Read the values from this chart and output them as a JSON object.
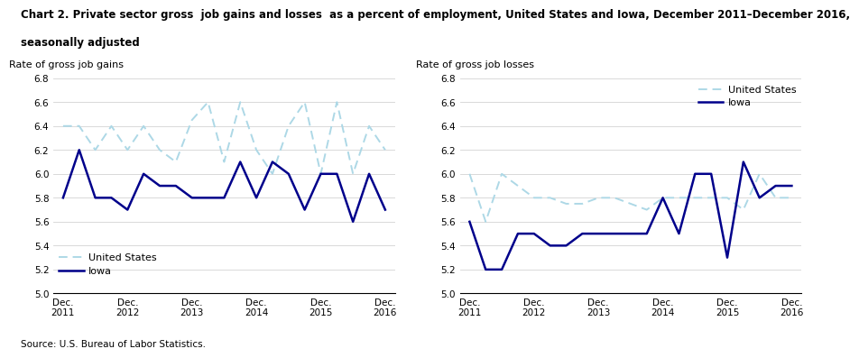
{
  "title_line1": "Chart 2. Private sector gross  job gains and losses  as a percent of employment, United States and Iowa, December 2011–December 2016,",
  "title_line2": "seasonally adjusted",
  "left_ylabel": "Rate of gross job gains",
  "right_ylabel": "Rate of gross job losses",
  "source": "Source: U.S. Bureau of Labor Statistics.",
  "xlabels": [
    "Dec.\n2011",
    "Dec.\n2012",
    "Dec.\n2013",
    "Dec.\n2014",
    "Dec.\n2015",
    "Dec.\n2016"
  ],
  "ylim": [
    5.0,
    6.8
  ],
  "yticks": [
    5.0,
    5.2,
    5.4,
    5.6,
    5.8,
    6.0,
    6.2,
    6.4,
    6.6,
    6.8
  ],
  "gains_us": [
    6.4,
    6.4,
    6.2,
    6.4,
    6.2,
    6.4,
    6.2,
    6.1,
    6.45,
    6.6,
    6.1,
    6.6,
    6.2,
    6.0,
    6.4,
    6.6,
    6.0,
    6.6,
    6.0,
    6.4,
    6.2
  ],
  "gains_iowa": [
    5.8,
    6.2,
    5.8,
    5.8,
    5.7,
    6.0,
    5.9,
    5.9,
    5.8,
    5.8,
    5.8,
    6.1,
    5.8,
    6.1,
    6.0,
    5.7,
    6.0,
    6.0,
    5.6,
    6.0,
    5.7
  ],
  "losses_us": [
    6.0,
    5.6,
    6.0,
    5.9,
    5.8,
    5.8,
    5.75,
    5.75,
    5.8,
    5.8,
    5.75,
    5.7,
    5.8,
    5.8,
    5.8,
    5.8,
    5.8,
    5.7,
    6.0,
    5.8,
    5.8
  ],
  "losses_iowa": [
    5.6,
    5.2,
    5.2,
    5.5,
    5.5,
    5.4,
    5.4,
    5.5,
    5.5,
    5.5,
    5.5,
    5.5,
    5.8,
    5.5,
    6.0,
    6.0,
    5.3,
    6.1,
    5.8,
    5.9,
    5.9
  ],
  "us_color": "#add8e6",
  "iowa_color": "#00008b",
  "legend_us": "United States",
  "legend_iowa": "Iowa"
}
